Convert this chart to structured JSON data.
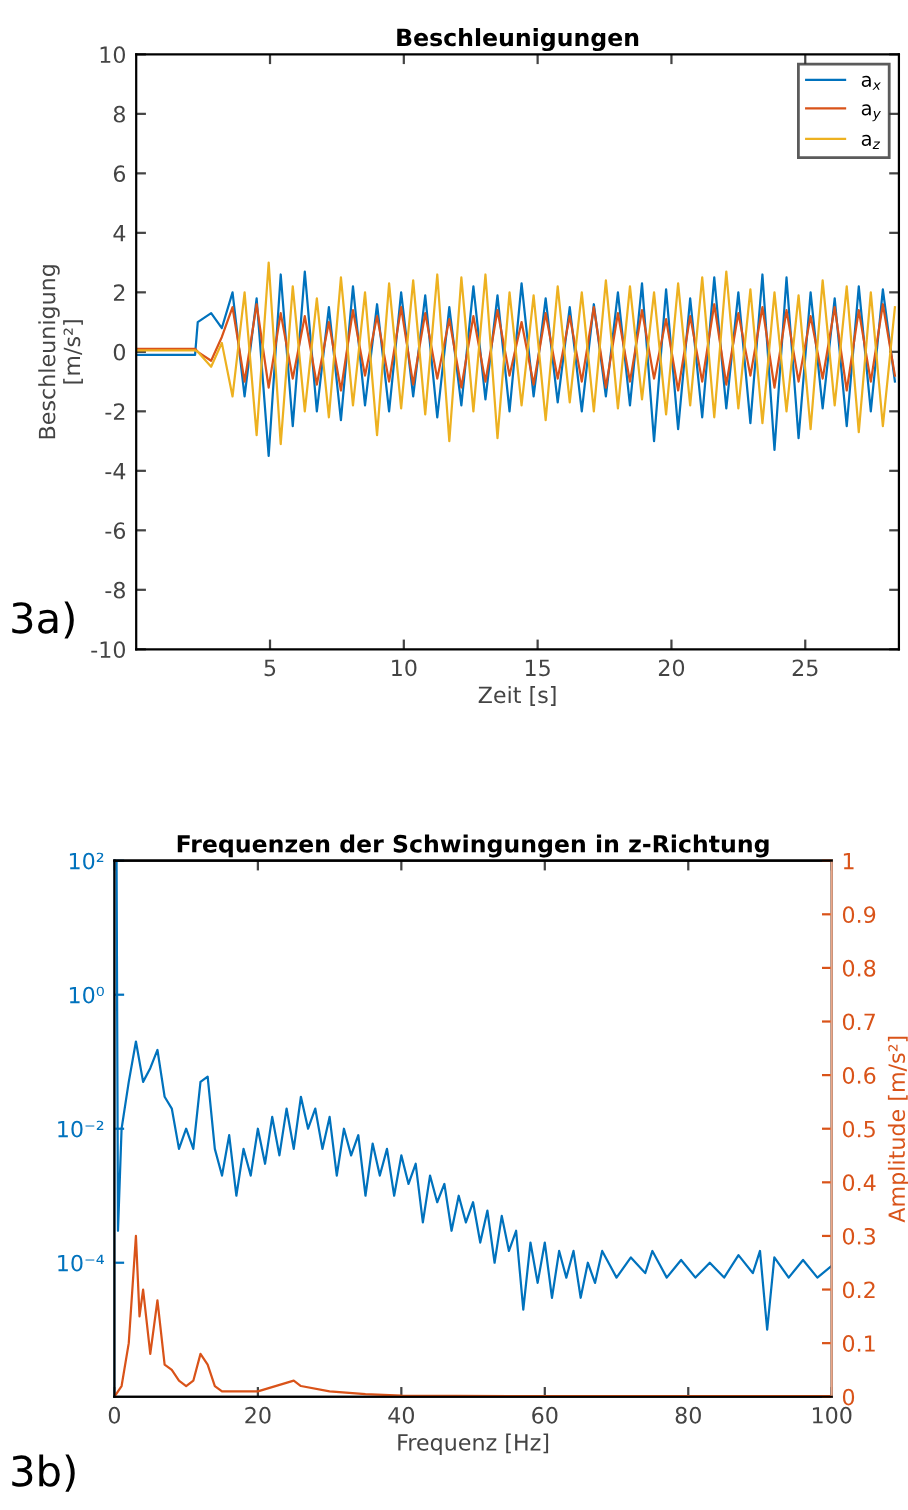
{
  "chart_data": [
    {
      "type": "line",
      "title": "Beschleunigungen",
      "xlabel": "Zeit [s]",
      "ylabel": "Beschleunigung\n[m/s²]",
      "annotations": [
        "3a)"
      ],
      "legend": "top right",
      "grid": false,
      "xlim": [
        0,
        28.5
      ],
      "xticks": [
        5,
        10,
        15,
        20,
        25
      ],
      "ylim": [
        -10,
        10
      ],
      "yticks": [
        -10,
        -8,
        -6,
        -4,
        -2,
        0,
        2,
        4,
        6,
        8,
        10
      ],
      "x": [
        0,
        2.2,
        2.3,
        2.8,
        3.2,
        3.6,
        4.05,
        4.5,
        4.95,
        5.4,
        5.85,
        6.3,
        6.75,
        7.2,
        7.65,
        8.1,
        8.55,
        9.0,
        9.45,
        9.9,
        10.35,
        10.8,
        11.25,
        11.7,
        12.15,
        12.6,
        13.05,
        13.5,
        13.95,
        14.4,
        14.85,
        15.3,
        15.75,
        16.2,
        16.65,
        17.1,
        17.55,
        18.0,
        18.45,
        18.9,
        19.35,
        19.8,
        20.25,
        20.7,
        21.15,
        21.6,
        22.05,
        22.5,
        22.95,
        23.4,
        23.85,
        24.3,
        24.75,
        25.2,
        25.65,
        26.1,
        26.55,
        27.0,
        27.45,
        27.9,
        28.35
      ],
      "series": [
        {
          "name": "a$_{x}$",
          "color": "#0072bd",
          "values": [
            -0.1,
            -0.1,
            1.0,
            1.3,
            0.8,
            2.0,
            -1.5,
            1.8,
            -3.5,
            2.6,
            -2.5,
            2.7,
            -2.0,
            1.5,
            -2.3,
            2.2,
            -1.8,
            1.6,
            -2.0,
            2.0,
            -1.5,
            1.9,
            -2.2,
            1.5,
            -1.8,
            2.2,
            -1.6,
            1.9,
            -2.0,
            2.3,
            -1.5,
            1.8,
            -1.7,
            1.5,
            -2.0,
            1.6,
            -1.5,
            2.0,
            -1.8,
            2.3,
            -3.0,
            2.1,
            -2.6,
            1.8,
            -2.2,
            2.5,
            -1.9,
            2.0,
            -2.4,
            2.6,
            -3.3,
            2.5,
            -2.9,
            2.0,
            -1.9,
            1.8,
            -2.5,
            2.2,
            -2.0,
            2.1,
            -1.0
          ]
        },
        {
          "name": "a$_{y}$",
          "color": "#d95319",
          "values": [
            0.1,
            0.1,
            0.0,
            -0.3,
            0.5,
            1.5,
            -1.0,
            1.6,
            -1.2,
            1.3,
            -0.9,
            1.2,
            -1.1,
            1.0,
            -1.3,
            1.4,
            -0.8,
            1.2,
            -1.0,
            1.5,
            -1.1,
            1.3,
            -0.9,
            1.1,
            -1.2,
            1.2,
            -1.0,
            1.4,
            -0.8,
            1.0,
            -1.1,
            1.3,
            -0.9,
            1.2,
            -1.0,
            1.5,
            -1.2,
            1.3,
            -1.0,
            1.4,
            -0.9,
            1.1,
            -1.3,
            1.2,
            -1.0,
            1.6,
            -1.1,
            1.3,
            -0.8,
            1.5,
            -1.2,
            1.4,
            -1.0,
            1.2,
            -0.9,
            1.5,
            -1.3,
            1.4,
            -1.0,
            1.6,
            -0.8
          ]
        },
        {
          "name": "a$_{z}$",
          "color": "#edb120",
          "values": [
            0.05,
            0.05,
            0.0,
            -0.5,
            0.3,
            -1.5,
            2.0,
            -2.8,
            3.0,
            -3.1,
            2.2,
            -2.0,
            1.8,
            -2.2,
            2.5,
            -1.8,
            2.0,
            -2.8,
            2.3,
            -1.9,
            2.4,
            -2.1,
            2.6,
            -3.0,
            2.5,
            -2.0,
            2.6,
            -2.9,
            2.0,
            -1.8,
            1.9,
            -2.3,
            2.2,
            -1.7,
            2.0,
            -2.0,
            2.4,
            -1.9,
            2.2,
            -1.6,
            2.0,
            -2.1,
            2.3,
            -1.8,
            2.5,
            -2.2,
            2.7,
            -1.9,
            2.1,
            -2.4,
            2.0,
            -2.0,
            1.9,
            -2.6,
            2.4,
            -1.8,
            2.2,
            -2.7,
            2.0,
            -2.5,
            1.5
          ]
        }
      ]
    },
    {
      "type": "line",
      "title": "Frequenzen der Schwingungen in z-Richtung",
      "xlabel": "Frequenz [Hz]",
      "y2label": "Amplitude [m/s²]",
      "annotations": [
        "3b)"
      ],
      "legend": false,
      "grid": false,
      "log": "y",
      "xlim": [
        0,
        100
      ],
      "xticks": [
        0,
        20,
        40,
        60,
        80,
        100
      ],
      "ylim": [
        1e-06,
        100
      ],
      "yticks": [
        {
          "value": 100,
          "label": "10²"
        },
        {
          "value": 1,
          "label": "10⁰"
        },
        {
          "value": 0.01,
          "label": "10⁻²"
        },
        {
          "value": 0.0001,
          "label": "10⁻⁴"
        }
      ],
      "y2lim": [
        0,
        1
      ],
      "y2ticks": [
        0,
        0.1,
        0.2,
        0.3,
        0.4,
        0.5,
        0.6,
        0.7,
        0.8,
        0.9,
        1
      ],
      "series": [
        {
          "color": "#0072bd",
          "axis": "y",
          "x": [
            0.3,
            0.5,
            1,
            2,
            3,
            4,
            5,
            6,
            7,
            8,
            9,
            10,
            11,
            12,
            13,
            14,
            15,
            16,
            17,
            18,
            19,
            20,
            21,
            22,
            23,
            24,
            25,
            26,
            27,
            28,
            29,
            30,
            31,
            32,
            33,
            34,
            35,
            36,
            37,
            38,
            39,
            40,
            41,
            42,
            43,
            44,
            45,
            46,
            47,
            48,
            49,
            50,
            51,
            52,
            53,
            54,
            55,
            56,
            57,
            58,
            59,
            60,
            61,
            62,
            63,
            64,
            65,
            66,
            67,
            68,
            70,
            72,
            74,
            75,
            77,
            79,
            81,
            83,
            85,
            87,
            89,
            90,
            91,
            92,
            94,
            96,
            98,
            100
          ],
          "values": [
            100,
            0.0003,
            0.01,
            0.05,
            0.2,
            0.05,
            0.08,
            0.15,
            0.03,
            0.02,
            0.005,
            0.01,
            0.005,
            0.05,
            0.06,
            0.005,
            0.002,
            0.008,
            0.001,
            0.005,
            0.002,
            0.01,
            0.003,
            0.015,
            0.004,
            0.02,
            0.005,
            0.03,
            0.01,
            0.02,
            0.005,
            0.015,
            0.002,
            0.01,
            0.004,
            0.008,
            0.001,
            0.006,
            0.002,
            0.005,
            0.001,
            0.004,
            0.0015,
            0.003,
            0.0004,
            0.002,
            0.0008,
            0.0015,
            0.0003,
            0.001,
            0.0004,
            0.0008,
            0.0002,
            0.0006,
            0.0001,
            0.0005,
            0.00015,
            0.0003,
            2e-05,
            0.0002,
            5e-05,
            0.0002,
            3e-05,
            0.00015,
            6e-05,
            0.00015,
            3e-05,
            0.0001,
            5e-05,
            0.00015,
            6e-05,
            0.00012,
            7e-05,
            0.00015,
            6e-05,
            0.00011,
            6e-05,
            0.0001,
            6e-05,
            0.00013,
            7e-05,
            0.00015,
            1e-05,
            0.00012,
            6e-05,
            0.00011,
            6e-05,
            9e-05
          ]
        },
        {
          "color": "#d95319",
          "axis": "y2",
          "x": [
            0,
            1,
            2,
            3,
            3.5,
            4,
            5,
            6,
            7,
            8,
            9,
            10,
            11,
            12,
            13,
            14,
            15,
            20,
            25,
            26,
            30,
            35,
            40,
            60,
            100
          ],
          "values": [
            0,
            0.02,
            0.1,
            0.3,
            0.15,
            0.2,
            0.08,
            0.18,
            0.06,
            0.05,
            0.03,
            0.02,
            0.03,
            0.08,
            0.06,
            0.02,
            0.01,
            0.01,
            0.03,
            0.02,
            0.01,
            0.005,
            0.002,
            0.001,
            0.001
          ]
        }
      ]
    }
  ]
}
